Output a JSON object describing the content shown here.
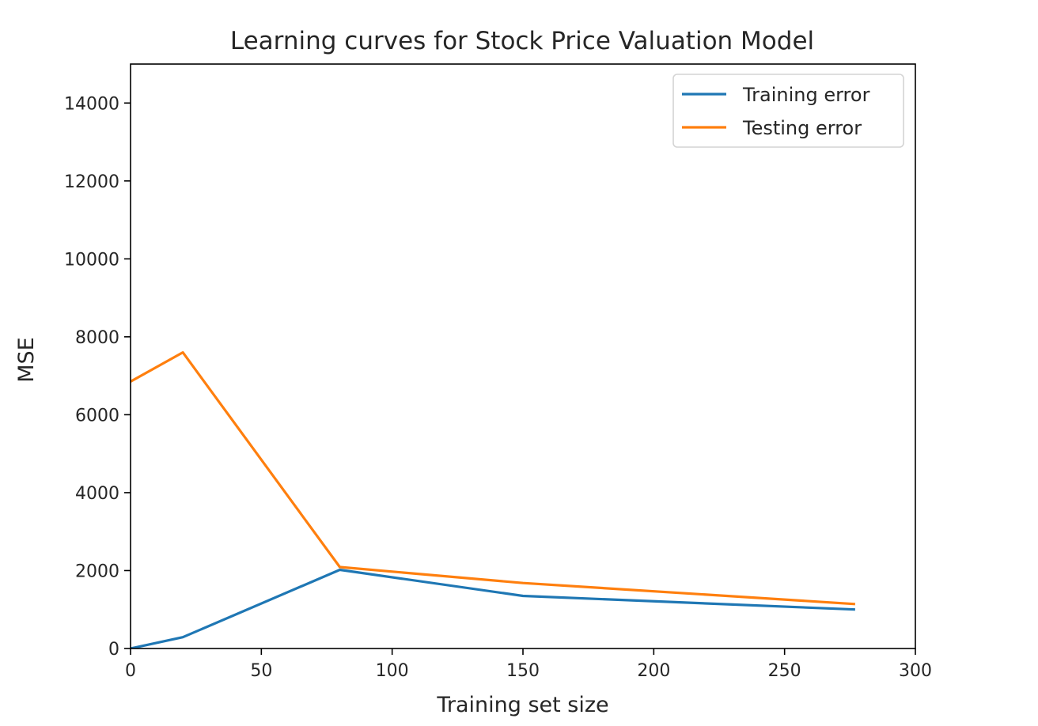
{
  "chart_data": {
    "type": "line",
    "title": "Learning curves for Stock Price Valuation Model",
    "xlabel": "Training set size",
    "ylabel": "MSE",
    "xlim": [
      0,
      300
    ],
    "ylim": [
      0,
      15000
    ],
    "xticks": [
      0,
      50,
      100,
      150,
      200,
      250,
      300
    ],
    "yticks": [
      0,
      2000,
      4000,
      6000,
      8000,
      10000,
      12000,
      14000
    ],
    "grid": false,
    "legend_position": "top-right",
    "series": [
      {
        "name": "Training error",
        "color": "#1f77b4",
        "x": [
          0,
          20,
          80,
          150,
          277
        ],
        "y": [
          0,
          290,
          2020,
          1350,
          1000
        ]
      },
      {
        "name": "Testing error",
        "color": "#ff7f0e",
        "x": [
          0,
          20,
          80,
          150,
          277
        ],
        "y": [
          6850,
          7600,
          2090,
          1680,
          1140
        ]
      }
    ]
  }
}
